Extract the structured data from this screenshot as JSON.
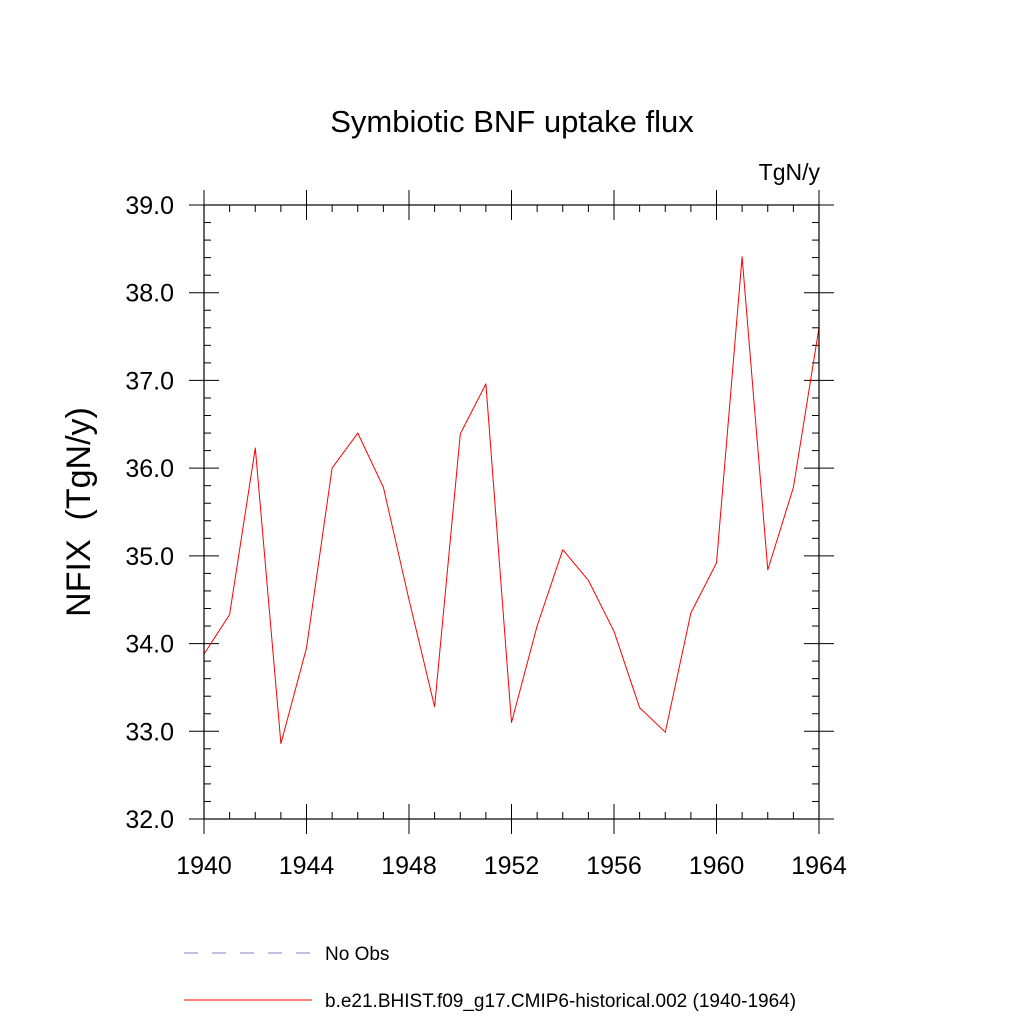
{
  "chart_data": {
    "type": "line",
    "title": "Symbiotic BNF uptake flux",
    "units": "TgN/y",
    "ylabel": "NFIX  (TgN/y)",
    "xlabel": "",
    "xlim": [
      1940,
      1964
    ],
    "ylim": [
      32.0,
      39.0
    ],
    "x_ticks": [
      "1940",
      "1944",
      "1948",
      "1952",
      "1956",
      "1960",
      "1964"
    ],
    "y_ticks": [
      "32.0",
      "33.0",
      "34.0",
      "35.0",
      "36.0",
      "37.0",
      "38.0",
      "39.0"
    ],
    "grid": false,
    "legend_position": "bottom",
    "series": [
      {
        "name": "b.e21.BHIST.f09_g17.CMIP6-historical.002 (1940-1964)",
        "color": "#ff0000",
        "style": "solid",
        "x": [
          1940,
          1941,
          1942,
          1943,
          1944,
          1945,
          1946,
          1947,
          1948,
          1949,
          1950,
          1951,
          1952,
          1953,
          1954,
          1955,
          1956,
          1957,
          1958,
          1959,
          1960,
          1961,
          1962,
          1963,
          1964
        ],
        "y": [
          33.88,
          34.33,
          36.23,
          32.86,
          33.95,
          36.0,
          36.4,
          35.78,
          34.5,
          33.28,
          36.39,
          36.96,
          33.1,
          34.2,
          35.07,
          34.72,
          34.14,
          33.27,
          32.99,
          34.35,
          34.92,
          38.41,
          34.84,
          35.78,
          37.6
        ]
      }
    ],
    "legend": [
      {
        "label": "No Obs",
        "color": "#8080c0",
        "style": "dashed"
      },
      {
        "label": "b.e21.BHIST.f09_g17.CMIP6-historical.002 (1940-1964)",
        "color": "#ff0000",
        "style": "solid"
      }
    ]
  }
}
